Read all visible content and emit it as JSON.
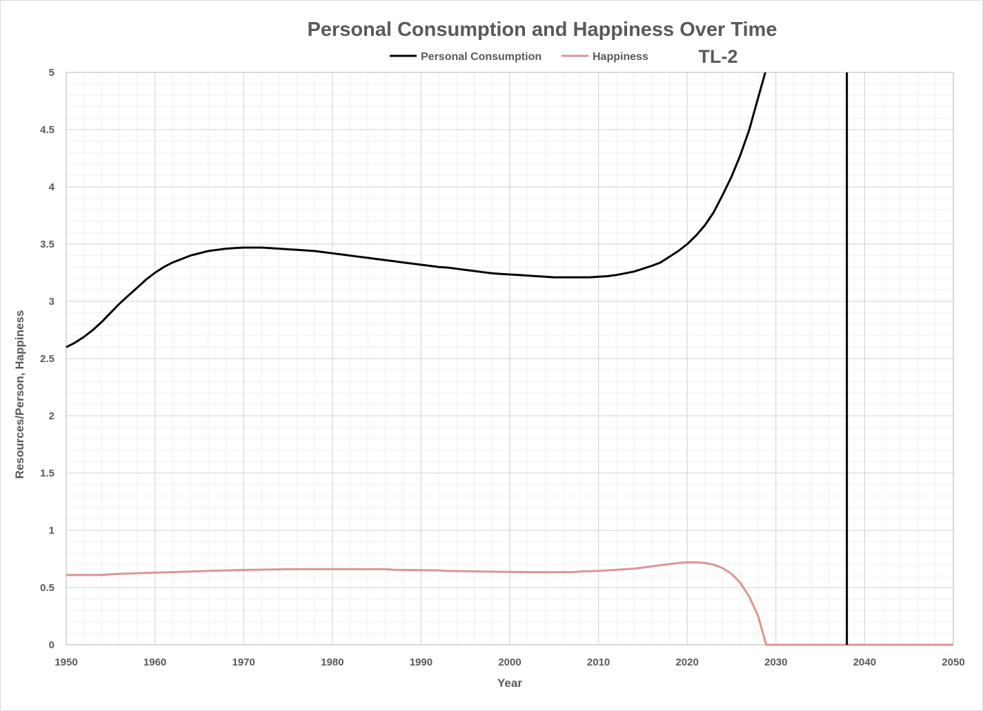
{
  "chart_data": {
    "type": "line",
    "title": "Personal Consumption and Happiness Over Time",
    "annotation": "TL-2",
    "xlabel": "Year",
    "ylabel": "Resources/Person, Happiness",
    "xlim": [
      1950,
      2050
    ],
    "ylim": [
      0,
      5
    ],
    "x_ticks": [
      "1950",
      "1960",
      "1970",
      "1980",
      "1990",
      "2000",
      "2010",
      "2020",
      "2030",
      "2040",
      "2050"
    ],
    "y_ticks": [
      "0",
      "0.5",
      "1",
      "1.5",
      "2",
      "2.5",
      "3",
      "3.5",
      "4",
      "4.5",
      "5"
    ],
    "grid": true,
    "legend_position": "top",
    "vertical_marker_year": 2038,
    "series": [
      {
        "name": "Personal Consumption",
        "color": "#000000",
        "points": [
          [
            1950,
            2.6
          ],
          [
            1951,
            2.64
          ],
          [
            1952,
            2.69
          ],
          [
            1953,
            2.75
          ],
          [
            1954,
            2.82
          ],
          [
            1955,
            2.9
          ],
          [
            1956,
            2.98
          ],
          [
            1957,
            3.05
          ],
          [
            1958,
            3.12
          ],
          [
            1959,
            3.19
          ],
          [
            1960,
            3.25
          ],
          [
            1961,
            3.3
          ],
          [
            1962,
            3.34
          ],
          [
            1963,
            3.37
          ],
          [
            1964,
            3.4
          ],
          [
            1965,
            3.42
          ],
          [
            1966,
            3.44
          ],
          [
            1967,
            3.45
          ],
          [
            1968,
            3.46
          ],
          [
            1969,
            3.465
          ],
          [
            1970,
            3.47
          ],
          [
            1971,
            3.47
          ],
          [
            1972,
            3.47
          ],
          [
            1973,
            3.465
          ],
          [
            1974,
            3.46
          ],
          [
            1975,
            3.455
          ],
          [
            1976,
            3.45
          ],
          [
            1977,
            3.445
          ],
          [
            1978,
            3.44
          ],
          [
            1979,
            3.43
          ],
          [
            1980,
            3.42
          ],
          [
            1981,
            3.41
          ],
          [
            1982,
            3.4
          ],
          [
            1983,
            3.39
          ],
          [
            1984,
            3.38
          ],
          [
            1985,
            3.37
          ],
          [
            1986,
            3.36
          ],
          [
            1987,
            3.35
          ],
          [
            1988,
            3.34
          ],
          [
            1989,
            3.33
          ],
          [
            1990,
            3.32
          ],
          [
            1991,
            3.31
          ],
          [
            1992,
            3.3
          ],
          [
            1993,
            3.295
          ],
          [
            1994,
            3.285
          ],
          [
            1995,
            3.275
          ],
          [
            1996,
            3.265
          ],
          [
            1997,
            3.255
          ],
          [
            1998,
            3.245
          ],
          [
            1999,
            3.24
          ],
          [
            2000,
            3.235
          ],
          [
            2001,
            3.23
          ],
          [
            2002,
            3.225
          ],
          [
            2003,
            3.22
          ],
          [
            2004,
            3.215
          ],
          [
            2005,
            3.21
          ],
          [
            2006,
            3.21
          ],
          [
            2007,
            3.21
          ],
          [
            2008,
            3.21
          ],
          [
            2009,
            3.21
          ],
          [
            2010,
            3.215
          ],
          [
            2011,
            3.22
          ],
          [
            2012,
            3.23
          ],
          [
            2013,
            3.245
          ],
          [
            2014,
            3.26
          ],
          [
            2015,
            3.285
          ],
          [
            2016,
            3.31
          ],
          [
            2017,
            3.34
          ],
          [
            2018,
            3.39
          ],
          [
            2019,
            3.44
          ],
          [
            2020,
            3.5
          ],
          [
            2021,
            3.575
          ],
          [
            2022,
            3.665
          ],
          [
            2023,
            3.78
          ],
          [
            2024,
            3.93
          ],
          [
            2025,
            4.09
          ],
          [
            2026,
            4.28
          ],
          [
            2027,
            4.5
          ],
          [
            2028,
            4.78
          ],
          [
            2028.8,
            5.0
          ]
        ]
      },
      {
        "name": "Happiness",
        "color": "#d99694",
        "points": [
          [
            1950,
            0.61
          ],
          [
            1954,
            0.61
          ],
          [
            1955,
            0.615
          ],
          [
            1956,
            0.62
          ],
          [
            1958,
            0.625
          ],
          [
            1960,
            0.63
          ],
          [
            1962,
            0.635
          ],
          [
            1964,
            0.64
          ],
          [
            1966,
            0.645
          ],
          [
            1968,
            0.65
          ],
          [
            1971,
            0.655
          ],
          [
            1975,
            0.66
          ],
          [
            1980,
            0.66
          ],
          [
            1986,
            0.66
          ],
          [
            1987,
            0.655
          ],
          [
            1992,
            0.65
          ],
          [
            1993,
            0.645
          ],
          [
            1997,
            0.64
          ],
          [
            2002,
            0.635
          ],
          [
            2007,
            0.635
          ],
          [
            2008,
            0.64
          ],
          [
            2010,
            0.645
          ],
          [
            2012,
            0.655
          ],
          [
            2014,
            0.665
          ],
          [
            2015,
            0.675
          ],
          [
            2016,
            0.685
          ],
          [
            2017,
            0.695
          ],
          [
            2018,
            0.705
          ],
          [
            2019,
            0.715
          ],
          [
            2020,
            0.72
          ],
          [
            2021,
            0.72
          ],
          [
            2022,
            0.715
          ],
          [
            2023,
            0.7
          ],
          [
            2024,
            0.67
          ],
          [
            2025,
            0.62
          ],
          [
            2026,
            0.54
          ],
          [
            2027,
            0.42
          ],
          [
            2028,
            0.25
          ],
          [
            2028.9,
            0.0
          ],
          [
            2050,
            0.0
          ]
        ]
      }
    ]
  }
}
